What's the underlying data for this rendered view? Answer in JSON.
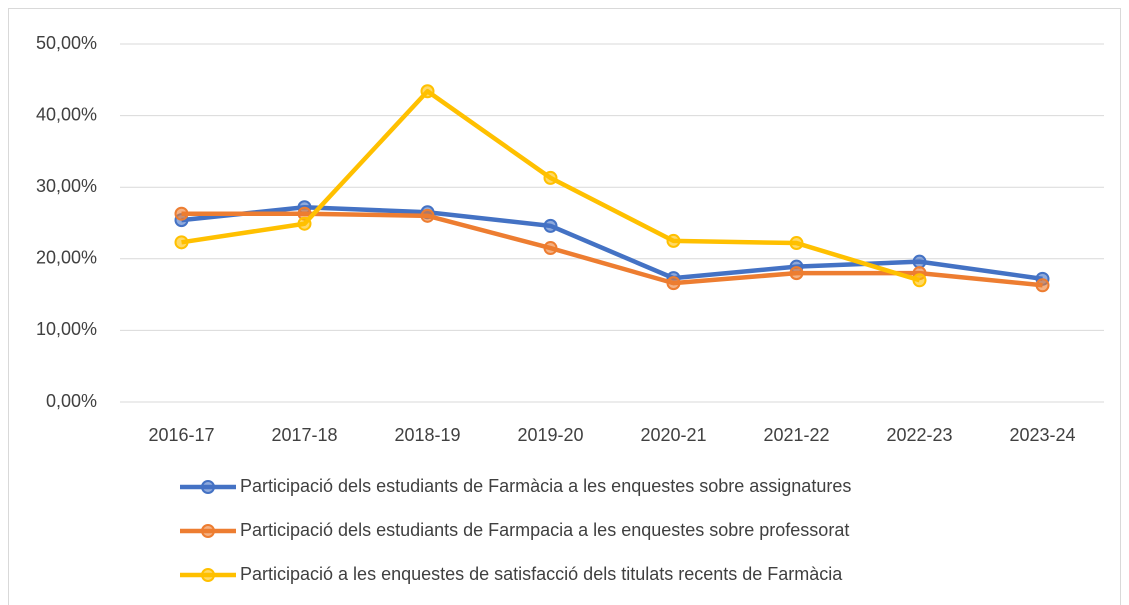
{
  "chart_data": {
    "type": "line",
    "categories": [
      "2016-17",
      "2017-18",
      "2018-19",
      "2019-20",
      "2020-21",
      "2021-22",
      "2022-23",
      "2023-24"
    ],
    "series": [
      {
        "name": "Participació dels estudiants de Farmàcia a les enquestes sobre assignatures",
        "color": "#4472c4",
        "values": [
          25.4,
          27.2,
          26.5,
          24.6,
          17.3,
          18.9,
          19.6,
          17.2
        ]
      },
      {
        "name": "Participació dels estudiants de Farmpacia a les enquestes sobre professorat",
        "color": "#ed7d31",
        "values": [
          26.3,
          26.3,
          26.0,
          21.5,
          16.6,
          18.0,
          18.0,
          16.3
        ]
      },
      {
        "name": "Participació a les enquestes de satisfacció dels titulats recents de Farmàcia",
        "color": "#ffc000",
        "values": [
          22.3,
          24.9,
          43.4,
          31.3,
          22.5,
          22.2,
          17.0,
          null
        ]
      }
    ],
    "ylim": [
      0,
      50
    ],
    "yticks": [
      {
        "value": 0,
        "label": "0,00%"
      },
      {
        "value": 10,
        "label": "10,00%"
      },
      {
        "value": 20,
        "label": "20,00%"
      },
      {
        "value": 30,
        "label": "30,00%"
      },
      {
        "value": 40,
        "label": "40,00%"
      },
      {
        "value": 50,
        "label": "50,00%"
      }
    ],
    "grid": true,
    "legend": "bottom"
  }
}
